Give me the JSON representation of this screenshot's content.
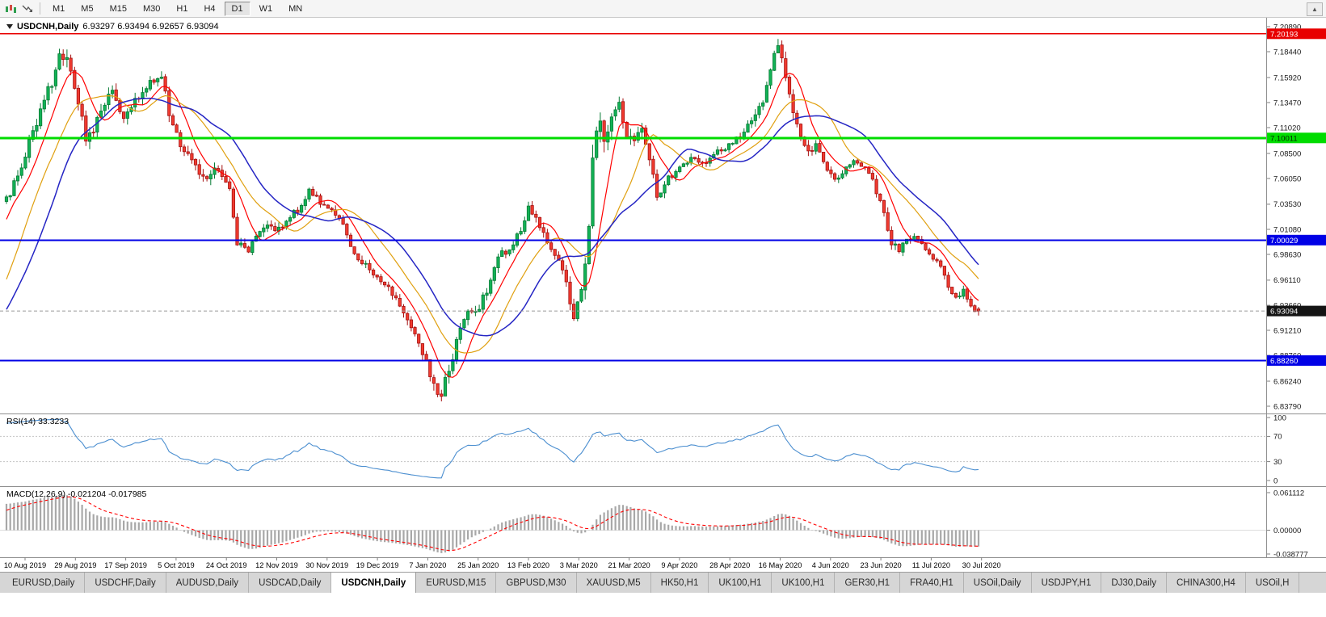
{
  "toolbar": {
    "timeframes": [
      "M1",
      "M5",
      "M15",
      "M30",
      "H1",
      "H4",
      "D1",
      "W1",
      "MN"
    ],
    "selected_timeframe": "D1",
    "expand_button_glyph": "▲"
  },
  "chart": {
    "symbol": "USDCNH,Daily",
    "ohlc_text": "6.93297 6.93494 6.92657 6.93094",
    "current_price_label": "6.93094",
    "price_scale_ticks": [
      "7.20890",
      "7.18440",
      "7.15920",
      "7.13470",
      "7.11020",
      "7.08500",
      "7.06050",
      "7.03530",
      "7.01080",
      "6.98630",
      "6.96110",
      "6.93660",
      "6.91210",
      "6.88760",
      "6.86240",
      "6.83790"
    ],
    "time_labels": [
      "10 Aug 2019",
      "29 Aug 2019",
      "17 Sep 2019",
      "5 Oct 2019",
      "24 Oct 2019",
      "12 Nov 2019",
      "30 Nov 2019",
      "19 Dec 2019",
      "7 Jan 2020",
      "25 Jan 2020",
      "13 Feb 2020",
      "3 Mar 2020",
      "21 Mar 2020",
      "9 Apr 2020",
      "28 Apr 2020",
      "16 May 2020",
      "4 Jun 2020",
      "23 Jun 2020",
      "11 Jul 2020",
      "30 Jul 2020"
    ]
  },
  "rsi": {
    "label_text": "RSI(14) 33.3233",
    "scale": [
      "100",
      "70",
      "30",
      "0"
    ]
  },
  "macd": {
    "label_text": "MACD(12,26,9) -0.021204 -0.017985",
    "scale": [
      "0.061112",
      "0.00000",
      "-0.038777"
    ]
  },
  "tabs": {
    "items": [
      "EURUSD,Daily",
      "USDCHF,Daily",
      "AUDUSD,Daily",
      "USDCAD,Daily",
      "USDCNH,Daily",
      "EURUSD,M15",
      "GBPUSD,M30",
      "XAUUSD,M5",
      "HK50,H1",
      "UK100,H1",
      "UK100,H1",
      "GER30,H1",
      "FRA40,H1",
      "USOil,Daily",
      "USDJPY,H1",
      "DJ30,Daily",
      "CHINA300,H4",
      "USOil,H"
    ],
    "selected_index": 4
  },
  "colors": {
    "candle_up_border": "#067A34",
    "candle_up_fill": "#12B256",
    "candle_down_border": "#A51111",
    "candle_down_fill": "#F03B30",
    "ma_fast": "#FF0000",
    "ma_mid": "#E0A010",
    "ma_slow": "#2525C4",
    "rsi_line": "#4C8FD0",
    "macd_hist": "#A8A8A8",
    "macd_signal": "#FF0000",
    "current_price_bg": "#141414",
    "current_price_line": "#9B9B9B"
  },
  "chart_data": {
    "type": "candlestick",
    "symbol": "USDCNH",
    "timeframe": "Daily",
    "last_ohlc": {
      "open": 6.93297,
      "high": 6.93494,
      "low": 6.92657,
      "close": 6.93094
    },
    "current_price": 6.93094,
    "ylim": [
      6.8379,
      7.2089
    ],
    "candle_count": 258,
    "pre_candles": 40,
    "ma_periods": [
      8,
      17,
      26
    ],
    "rsi_period": 14,
    "rsi_current": 33.3233,
    "rsi_levels": [
      70,
      30
    ],
    "macd": {
      "fast": 12,
      "slow": 26,
      "signal_period": 9,
      "current_macd": -0.021204,
      "current_signal": -0.017985,
      "scale_max": 0.061112,
      "scale_min": -0.038777
    },
    "hlines": [
      {
        "name": "resistance-line-red",
        "price": 7.20193,
        "label": "7.20193",
        "color": "#E80000",
        "width": 1.2,
        "label_fg": "#FFFFFF"
      },
      {
        "name": "level-line-green",
        "price": 7.10011,
        "label": "7.10011",
        "color": "#00DC00",
        "width": 3,
        "label_fg": "#002800"
      },
      {
        "name": "level-line-blue",
        "price": 7.00029,
        "label": "7.00029",
        "color": "#0000E6",
        "width": 2,
        "label_fg": "#FFFFFF"
      },
      {
        "name": "support-line-blue",
        "price": 6.8826,
        "label": "6.88260",
        "color": "#0000E6",
        "width": 2,
        "label_fg": "#FFFFFF"
      }
    ],
    "pre_path": [
      [
        -40,
        6.872
      ],
      [
        -30,
        6.868
      ],
      [
        -22,
        6.875
      ],
      [
        -16,
        6.882
      ],
      [
        -12,
        6.894
      ],
      [
        -8,
        6.96
      ],
      [
        -5,
        7.02
      ],
      [
        -2,
        7.038
      ],
      [
        -1,
        7.04
      ]
    ],
    "price_path": [
      [
        0,
        7.04
      ],
      [
        3,
        7.065
      ],
      [
        6,
        7.095
      ],
      [
        9,
        7.125
      ],
      [
        12,
        7.155
      ],
      [
        14,
        7.185
      ],
      [
        16,
        7.178
      ],
      [
        19,
        7.135
      ],
      [
        21,
        7.1
      ],
      [
        23,
        7.108
      ],
      [
        25,
        7.128
      ],
      [
        28,
        7.145
      ],
      [
        31,
        7.122
      ],
      [
        35,
        7.14
      ],
      [
        38,
        7.153
      ],
      [
        41,
        7.16
      ],
      [
        43,
        7.125
      ],
      [
        46,
        7.092
      ],
      [
        50,
        7.07
      ],
      [
        53,
        7.064
      ],
      [
        56,
        7.07
      ],
      [
        59,
        7.052
      ],
      [
        61,
        6.998
      ],
      [
        64,
        6.99
      ],
      [
        66,
        7.006
      ],
      [
        69,
        7.016
      ],
      [
        72,
        7.01
      ],
      [
        75,
        7.024
      ],
      [
        78,
        7.032
      ],
      [
        80,
        7.05
      ],
      [
        83,
        7.036
      ],
      [
        86,
        7.03
      ],
      [
        89,
        7.016
      ],
      [
        92,
        6.986
      ],
      [
        96,
        6.974
      ],
      [
        98,
        6.964
      ],
      [
        101,
        6.954
      ],
      [
        104,
        6.936
      ],
      [
        107,
        6.918
      ],
      [
        109,
        6.9
      ],
      [
        112,
        6.868
      ],
      [
        114,
        6.85
      ],
      [
        115,
        6.845
      ],
      [
        116,
        6.862
      ],
      [
        118,
        6.885
      ],
      [
        120,
        6.918
      ],
      [
        122,
        6.93
      ],
      [
        125,
        6.936
      ],
      [
        128,
        6.958
      ],
      [
        130,
        6.984
      ],
      [
        133,
        6.992
      ],
      [
        136,
        7.01
      ],
      [
        138,
        7.034
      ],
      [
        140,
        7.022
      ],
      [
        143,
        7.0
      ],
      [
        146,
        6.98
      ],
      [
        148,
        6.956
      ],
      [
        150,
        6.928
      ],
      [
        152,
        6.956
      ],
      [
        154,
        7.01
      ],
      [
        155,
        7.085
      ],
      [
        157,
        7.12
      ],
      [
        158,
        7.098
      ],
      [
        160,
        7.115
      ],
      [
        162,
        7.14
      ],
      [
        164,
        7.1
      ],
      [
        166,
        7.094
      ],
      [
        168,
        7.11
      ],
      [
        170,
        7.078
      ],
      [
        172,
        7.044
      ],
      [
        175,
        7.06
      ],
      [
        178,
        7.07
      ],
      [
        181,
        7.08
      ],
      [
        184,
        7.074
      ],
      [
        187,
        7.086
      ],
      [
        191,
        7.092
      ],
      [
        194,
        7.102
      ],
      [
        197,
        7.116
      ],
      [
        200,
        7.136
      ],
      [
        202,
        7.168
      ],
      [
        204,
        7.192
      ],
      [
        206,
        7.158
      ],
      [
        208,
        7.128
      ],
      [
        210,
        7.098
      ],
      [
        212,
        7.085
      ],
      [
        214,
        7.096
      ],
      [
        216,
        7.074
      ],
      [
        219,
        7.06
      ],
      [
        222,
        7.07
      ],
      [
        224,
        7.08
      ],
      [
        227,
        7.07
      ],
      [
        229,
        7.058
      ],
      [
        232,
        7.028
      ],
      [
        234,
        6.998
      ],
      [
        236,
        6.99
      ],
      [
        238,
        7.0
      ],
      [
        240,
        7.006
      ],
      [
        242,
        6.996
      ],
      [
        244,
        6.986
      ],
      [
        247,
        6.974
      ],
      [
        249,
        6.954
      ],
      [
        251,
        6.944
      ],
      [
        253,
        6.95
      ],
      [
        255,
        6.934
      ],
      [
        257,
        6.931
      ]
    ],
    "volatility": [
      [
        0,
        0.013
      ],
      [
        14,
        0.016
      ],
      [
        30,
        0.012
      ],
      [
        45,
        0.011
      ],
      [
        60,
        0.011
      ],
      [
        75,
        0.008
      ],
      [
        90,
        0.008
      ],
      [
        105,
        0.009
      ],
      [
        113,
        0.014
      ],
      [
        120,
        0.011
      ],
      [
        135,
        0.009
      ],
      [
        148,
        0.01
      ],
      [
        155,
        0.024
      ],
      [
        160,
        0.018
      ],
      [
        165,
        0.014
      ],
      [
        172,
        0.011
      ],
      [
        180,
        0.008
      ],
      [
        190,
        0.007
      ],
      [
        200,
        0.012
      ],
      [
        204,
        0.016
      ],
      [
        210,
        0.011
      ],
      [
        220,
        0.007
      ],
      [
        228,
        0.006
      ],
      [
        234,
        0.01
      ],
      [
        240,
        0.007
      ],
      [
        250,
        0.008
      ],
      [
        257,
        0.007
      ]
    ]
  }
}
